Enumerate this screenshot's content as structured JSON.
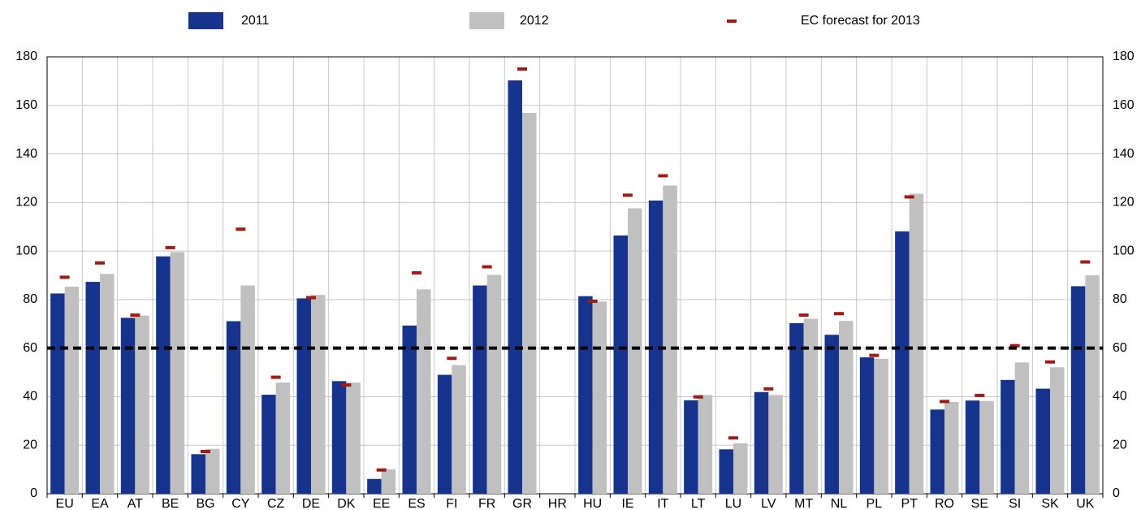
{
  "chart_data": {
    "type": "bar",
    "categories": [
      "EU",
      "EA",
      "AT",
      "BE",
      "BG",
      "CY",
      "CZ",
      "DE",
      "DK",
      "EE",
      "ES",
      "FI",
      "FR",
      "GR",
      "HR",
      "HU",
      "IE",
      "IT",
      "LT",
      "LU",
      "LV",
      "MT",
      "NL",
      "PL",
      "PT",
      "RO",
      "SE",
      "SI",
      "SK",
      "UK"
    ],
    "series": [
      {
        "name": "2011",
        "color": "#16338e",
        "values": [
          82.5,
          87.3,
          72.5,
          97.8,
          16.3,
          71.1,
          40.8,
          80.5,
          46.4,
          6.1,
          69.3,
          49.0,
          85.8,
          170.3,
          null,
          81.4,
          106.4,
          120.8,
          38.5,
          18.3,
          41.9,
          70.3,
          65.5,
          56.2,
          108.1,
          34.7,
          38.4,
          46.9,
          43.3,
          85.5
        ]
      },
      {
        "name": "2012",
        "color": "#c0c0c0",
        "values": [
          85.3,
          90.6,
          73.4,
          99.6,
          18.5,
          85.8,
          45.8,
          81.9,
          45.8,
          10.1,
          84.2,
          53.0,
          90.2,
          156.9,
          null,
          79.2,
          117.6,
          127.0,
          40.7,
          20.8,
          40.7,
          72.1,
          71.2,
          55.6,
          123.6,
          37.8,
          38.2,
          54.1,
          52.1,
          90.0
        ]
      },
      {
        "name": "EC forecast for 2013",
        "color": "#a31a12",
        "mark": "dash",
        "values": [
          89.2,
          95.1,
          73.6,
          101.4,
          17.4,
          109.0,
          48.0,
          80.8,
          44.8,
          9.8,
          91.0,
          55.8,
          93.5,
          175.0,
          null,
          79.3,
          123.0,
          131.0,
          39.9,
          23.0,
          43.2,
          73.6,
          74.2,
          57.0,
          122.3,
          38.0,
          40.5,
          61.0,
          54.3,
          95.5
        ]
      }
    ],
    "reference_line": 60,
    "ylim": [
      0,
      180
    ],
    "yticks": [
      0,
      20,
      40,
      60,
      80,
      100,
      120,
      140,
      160,
      180
    ],
    "grid": true
  }
}
